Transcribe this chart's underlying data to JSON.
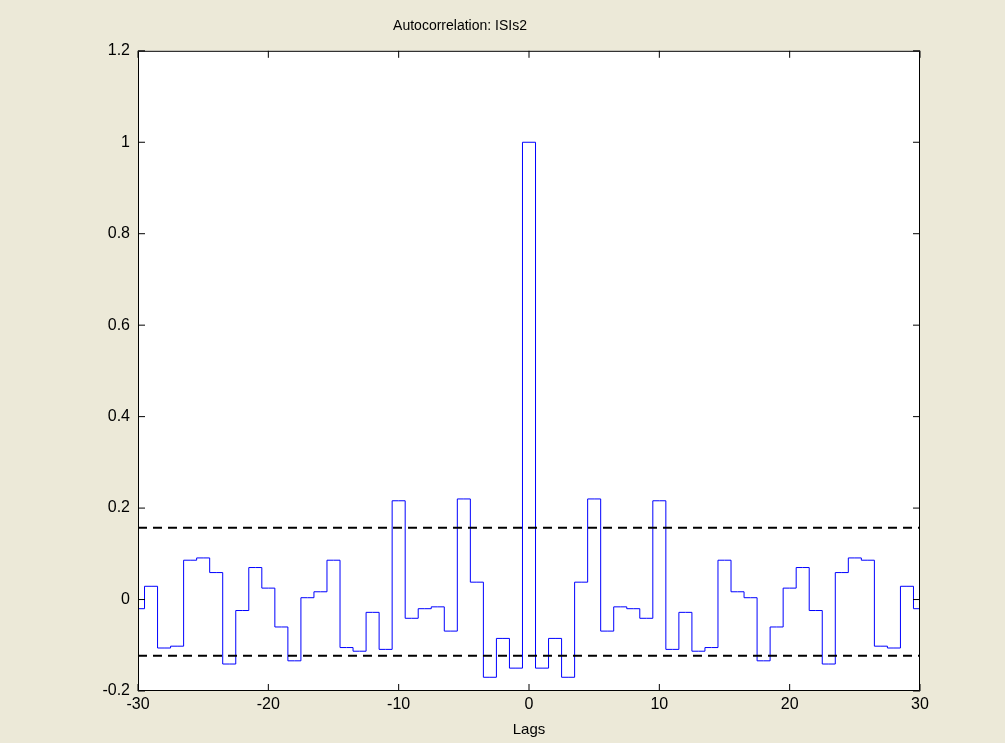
{
  "chart_data": {
    "type": "step",
    "title": "Autocorrelation: ISIs2",
    "xlabel": "Lags",
    "x": [
      -30,
      -29,
      -28,
      -27,
      -26,
      -25,
      -24,
      -23,
      -22,
      -21,
      -20,
      -19,
      -18,
      -17,
      -16,
      -15,
      -14,
      -13,
      -12,
      -11,
      -10,
      -9,
      -8,
      -7,
      -6,
      -5,
      -4,
      -3,
      -2,
      -1,
      0,
      1,
      2,
      3,
      4,
      5,
      6,
      7,
      8,
      9,
      10,
      11,
      12,
      13,
      14,
      15,
      16,
      17,
      18,
      19,
      20,
      21,
      22,
      23,
      24,
      25,
      26,
      27,
      28,
      29,
      30
    ],
    "series": [
      {
        "color": "#0000ff",
        "values": [
          -0.02,
          0.029,
          -0.106,
          -0.102,
          0.086,
          0.091,
          0.059,
          -0.141,
          -0.024,
          0.07,
          0.025,
          -0.06,
          -0.134,
          0.004,
          0.017,
          0.086,
          -0.105,
          -0.113,
          -0.028,
          -0.109,
          0.216,
          -0.041,
          -0.02,
          -0.016,
          -0.069,
          0.22,
          0.038,
          -0.17,
          -0.085,
          -0.15,
          1.0,
          -0.15,
          -0.085,
          -0.17,
          0.038,
          0.22,
          -0.069,
          -0.016,
          -0.02,
          -0.041,
          0.216,
          -0.109,
          -0.028,
          -0.113,
          -0.105,
          0.086,
          0.017,
          0.004,
          -0.134,
          -0.06,
          0.025,
          0.07,
          -0.024,
          -0.141,
          0.059,
          0.091,
          0.086,
          -0.102,
          -0.106,
          0.029,
          -0.02
        ]
      }
    ],
    "xlim": [
      -30,
      30
    ],
    "xticks": [
      -30,
      -20,
      -10,
      0,
      10,
      20,
      30
    ],
    "ylim": [
      -0.2,
      1.2
    ],
    "yticks": [
      -0.2,
      0,
      0.2,
      0.4,
      0.6,
      0.8,
      1,
      1.2
    ],
    "ref_lines": [
      {
        "axis": "y",
        "value": 0.157,
        "color": "#000000",
        "line_style": "dashed"
      },
      {
        "axis": "y",
        "value": -0.123,
        "color": "#000000",
        "line_style": "dashed"
      }
    ]
  }
}
